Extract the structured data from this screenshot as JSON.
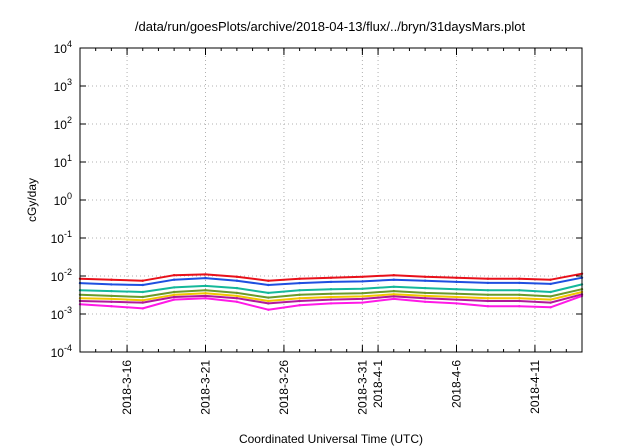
{
  "chart_data": {
    "type": "line",
    "title": "/data/run/goesPlots/archive/2018-04-13/flux/../bryn/31daysMars.plot",
    "xlabel": "Coordinated Universal Time (UTC)",
    "ylabel": "cGy/day",
    "yscale": "log",
    "ylim": [
      0.0001,
      10000
    ],
    "xlim": [
      "2018-03-13",
      "2018-04-14"
    ],
    "grid": true,
    "legend": "none",
    "y_ticks": [
      {
        "base": "10",
        "exp": "4",
        "value": 10000
      },
      {
        "base": "10",
        "exp": "3",
        "value": 1000
      },
      {
        "base": "10",
        "exp": "2",
        "value": 100
      },
      {
        "base": "10",
        "exp": "1",
        "value": 10
      },
      {
        "base": "10",
        "exp": "0",
        "value": 1
      },
      {
        "base": "10",
        "exp": "-1",
        "value": 0.1
      },
      {
        "base": "10",
        "exp": "-2",
        "value": 0.01
      },
      {
        "base": "10",
        "exp": "-3",
        "value": 0.001
      },
      {
        "base": "10",
        "exp": "-4",
        "value": 0.0001
      }
    ],
    "x_ticks": [
      {
        "label": "2018-3-16",
        "date": "2018-03-16"
      },
      {
        "label": "2018-3-21",
        "date": "2018-03-21"
      },
      {
        "label": "2018-3-26",
        "date": "2018-03-26"
      },
      {
        "label": "2018-3-31",
        "date": "2018-03-31"
      },
      {
        "label": "2018-4-1",
        "date": "2018-04-01"
      },
      {
        "label": "2018-4-6",
        "date": "2018-04-06"
      },
      {
        "label": "2018-4-11",
        "date": "2018-04-11"
      }
    ],
    "series": [
      {
        "color": "#e8101a",
        "x": [
          "2018-03-13",
          "2018-03-15",
          "2018-03-17",
          "2018-03-19",
          "2018-03-21",
          "2018-03-23",
          "2018-03-25",
          "2018-03-27",
          "2018-03-29",
          "2018-03-31",
          "2018-04-02",
          "2018-04-04",
          "2018-04-06",
          "2018-04-08",
          "2018-04-10",
          "2018-04-12",
          "2018-04-14"
        ],
        "values": [
          0.0085,
          0.008,
          0.0075,
          0.0105,
          0.011,
          0.0095,
          0.0075,
          0.0085,
          0.009,
          0.0095,
          0.0105,
          0.0095,
          0.009,
          0.0085,
          0.0085,
          0.008,
          0.0115
        ]
      },
      {
        "color": "#1f4fe0",
        "x": [
          "2018-03-13",
          "2018-03-15",
          "2018-03-17",
          "2018-03-19",
          "2018-03-21",
          "2018-03-23",
          "2018-03-25",
          "2018-03-27",
          "2018-03-29",
          "2018-03-31",
          "2018-04-02",
          "2018-04-04",
          "2018-04-06",
          "2018-04-08",
          "2018-04-10",
          "2018-04-12",
          "2018-04-14"
        ],
        "values": [
          0.0065,
          0.006,
          0.0058,
          0.008,
          0.0088,
          0.0075,
          0.0058,
          0.0065,
          0.007,
          0.0072,
          0.008,
          0.0075,
          0.007,
          0.0066,
          0.0066,
          0.0062,
          0.009
        ]
      },
      {
        "color": "#14b89a",
        "x": [
          "2018-03-13",
          "2018-03-15",
          "2018-03-17",
          "2018-03-19",
          "2018-03-21",
          "2018-03-23",
          "2018-03-25",
          "2018-03-27",
          "2018-03-29",
          "2018-03-31",
          "2018-04-02",
          "2018-04-04",
          "2018-04-06",
          "2018-04-08",
          "2018-04-10",
          "2018-04-12",
          "2018-04-14"
        ],
        "values": [
          0.0042,
          0.004,
          0.0038,
          0.005,
          0.0055,
          0.0048,
          0.0036,
          0.0042,
          0.0045,
          0.0046,
          0.0052,
          0.0048,
          0.0045,
          0.0042,
          0.0042,
          0.0038,
          0.006
        ]
      },
      {
        "color": "#6a9a2a",
        "x": [
          "2018-03-13",
          "2018-03-15",
          "2018-03-17",
          "2018-03-19",
          "2018-03-21",
          "2018-03-23",
          "2018-03-25",
          "2018-03-27",
          "2018-03-29",
          "2018-03-31",
          "2018-04-02",
          "2018-04-04",
          "2018-04-06",
          "2018-04-08",
          "2018-04-10",
          "2018-04-12",
          "2018-04-14"
        ],
        "values": [
          0.0032,
          0.003,
          0.0028,
          0.0038,
          0.0042,
          0.0036,
          0.0027,
          0.0032,
          0.0034,
          0.0035,
          0.004,
          0.0036,
          0.0034,
          0.0032,
          0.0032,
          0.0029,
          0.0045
        ]
      },
      {
        "color": "#f2c600",
        "x": [
          "2018-03-13",
          "2018-03-15",
          "2018-03-17",
          "2018-03-19",
          "2018-03-21",
          "2018-03-23",
          "2018-03-25",
          "2018-03-27",
          "2018-03-29",
          "2018-03-31",
          "2018-04-02",
          "2018-04-04",
          "2018-04-06",
          "2018-04-08",
          "2018-04-10",
          "2018-04-12",
          "2018-04-14"
        ],
        "values": [
          0.0026,
          0.0025,
          0.0023,
          0.0032,
          0.0035,
          0.003,
          0.0022,
          0.0026,
          0.0028,
          0.0029,
          0.0033,
          0.003,
          0.0028,
          0.0026,
          0.0026,
          0.0024,
          0.0038
        ]
      },
      {
        "color": "#b0189c",
        "x": [
          "2018-03-13",
          "2018-03-15",
          "2018-03-17",
          "2018-03-19",
          "2018-03-21",
          "2018-03-23",
          "2018-03-25",
          "2018-03-27",
          "2018-03-29",
          "2018-03-31",
          "2018-04-02",
          "2018-04-04",
          "2018-04-06",
          "2018-04-08",
          "2018-04-10",
          "2018-04-12",
          "2018-04-14"
        ],
        "values": [
          0.0022,
          0.0021,
          0.002,
          0.0028,
          0.003,
          0.0026,
          0.0019,
          0.0022,
          0.0024,
          0.0025,
          0.0029,
          0.0026,
          0.0024,
          0.0022,
          0.0022,
          0.002,
          0.0033
        ]
      },
      {
        "color": "#ff19e6",
        "x": [
          "2018-03-13",
          "2018-03-15",
          "2018-03-17",
          "2018-03-19",
          "2018-03-21",
          "2018-03-23",
          "2018-03-25",
          "2018-03-27",
          "2018-03-29",
          "2018-03-31",
          "2018-04-02",
          "2018-04-04",
          "2018-04-06",
          "2018-04-08",
          "2018-04-10",
          "2018-04-12",
          "2018-04-14"
        ],
        "values": [
          0.0018,
          0.0016,
          0.0014,
          0.0024,
          0.0026,
          0.0021,
          0.0013,
          0.0017,
          0.0019,
          0.002,
          0.0025,
          0.0021,
          0.0019,
          0.0016,
          0.0016,
          0.0015,
          0.003
        ]
      }
    ]
  }
}
